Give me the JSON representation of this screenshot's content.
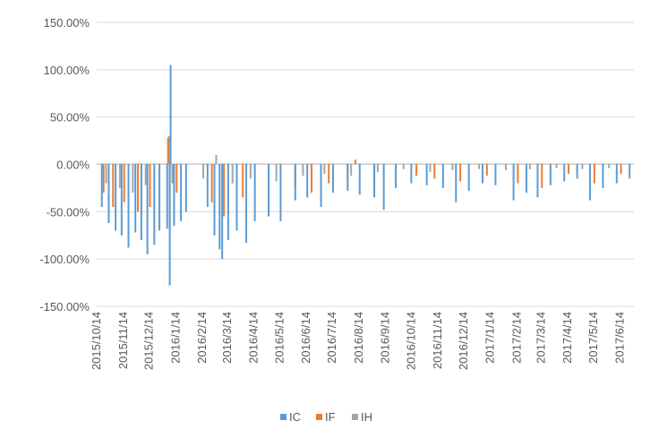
{
  "chart_data": {
    "type": "bar",
    "stacked": false,
    "title": "",
    "xlabel": "",
    "ylabel": "",
    "y_ticks": [
      "150.00%",
      "100.00%",
      "50.00%",
      "0.00%",
      "-50.00%",
      "-100.00%",
      "-150.00%"
    ],
    "ylim": [
      -150,
      150
    ],
    "grid": "horizontal",
    "x_ticks": [
      "2015/10/14",
      "2015/11/14",
      "2015/12/14",
      "2016/1/14",
      "2016/2/14",
      "2016/3/14",
      "2016/4/14",
      "2016/5/14",
      "2016/6/14",
      "2016/7/14",
      "2016/8/14",
      "2016/9/14",
      "2016/10/14",
      "2016/11/14",
      "2016/12/14",
      "2017/1/14",
      "2017/2/14",
      "2017/3/14",
      "2017/4/14",
      "2017/5/14",
      "2017/6/14"
    ],
    "legend": {
      "position": "bottom",
      "entries": [
        "IC",
        "IF",
        "IH"
      ]
    },
    "colors": {
      "IC": "#5b9bd5",
      "IF": "#ed7d31",
      "IH": "#a5a5a5"
    },
    "x_start": "2015/10/14",
    "x_end": "2017/6/30",
    "series": [
      {
        "name": "IC",
        "points": [
          [
            "2015/10/20",
            -45
          ],
          [
            "2015/10/28",
            -62
          ],
          [
            "2015/11/5",
            -70
          ],
          [
            "2015/11/12",
            -75
          ],
          [
            "2015/11/20",
            -88
          ],
          [
            "2015/11/28",
            -72
          ],
          [
            "2015/12/5",
            -80
          ],
          [
            "2015/12/12",
            -95
          ],
          [
            "2015/12/20",
            -85
          ],
          [
            "2015/12/26",
            -70
          ],
          [
            "2016/1/4",
            -68
          ],
          [
            "2016/1/7",
            -128
          ],
          [
            "2016/1/8",
            105
          ],
          [
            "2016/1/12",
            -65
          ],
          [
            "2016/1/20",
            -60
          ],
          [
            "2016/1/26",
            -50
          ],
          [
            "2016/2/20",
            -45
          ],
          [
            "2016/2/28",
            -75
          ],
          [
            "2016/3/5",
            -90
          ],
          [
            "2016/3/8",
            -100
          ],
          [
            "2016/3/15",
            -80
          ],
          [
            "2016/3/25",
            -70
          ],
          [
            "2016/4/5",
            -83
          ],
          [
            "2016/4/15",
            -60
          ],
          [
            "2016/5/1",
            -55
          ],
          [
            "2016/5/15",
            -60
          ],
          [
            "2016/6/1",
            -38
          ],
          [
            "2016/6/15",
            -35
          ],
          [
            "2016/7/1",
            -45
          ],
          [
            "2016/7/15",
            -30
          ],
          [
            "2016/8/1",
            -28
          ],
          [
            "2016/8/15",
            -32
          ],
          [
            "2016/9/1",
            -35
          ],
          [
            "2016/9/12",
            -48
          ],
          [
            "2016/9/26",
            -25
          ],
          [
            "2016/10/14",
            -20
          ],
          [
            "2016/11/1",
            -22
          ],
          [
            "2016/11/20",
            -25
          ],
          [
            "2016/12/5",
            -40
          ],
          [
            "2016/12/20",
            -28
          ],
          [
            "2017/1/5",
            -20
          ],
          [
            "2017/1/20",
            -22
          ],
          [
            "2017/2/10",
            -38
          ],
          [
            "2017/2/25",
            -30
          ],
          [
            "2017/3/10",
            -35
          ],
          [
            "2017/3/25",
            -22
          ],
          [
            "2017/4/10",
            -18
          ],
          [
            "2017/4/25",
            -15
          ],
          [
            "2017/5/10",
            -38
          ],
          [
            "2017/5/25",
            -25
          ],
          [
            "2017/6/10",
            -20
          ],
          [
            "2017/6/25",
            -15
          ]
        ]
      },
      {
        "name": "IF",
        "points": [
          [
            "2015/10/22",
            -30
          ],
          [
            "2015/11/2",
            -45
          ],
          [
            "2015/11/15",
            -40
          ],
          [
            "2015/12/1",
            -50
          ],
          [
            "2015/12/15",
            -45
          ],
          [
            "2016/1/5",
            28
          ],
          [
            "2016/1/7",
            -70
          ],
          [
            "2016/1/15",
            -30
          ],
          [
            "2016/2/25",
            -40
          ],
          [
            "2016/3/10",
            -55
          ],
          [
            "2016/4/1",
            -35
          ],
          [
            "2016/5/1",
            -30
          ],
          [
            "2016/6/1",
            -25
          ],
          [
            "2016/6/20",
            -30
          ],
          [
            "2016/7/10",
            -20
          ],
          [
            "2016/8/1",
            -18
          ],
          [
            "2016/8/10",
            5
          ],
          [
            "2016/9/1",
            -22
          ],
          [
            "2016/10/20",
            -12
          ],
          [
            "2016/11/10",
            -15
          ],
          [
            "2016/12/10",
            -18
          ],
          [
            "2017/1/10",
            -12
          ],
          [
            "2017/2/15",
            -20
          ],
          [
            "2017/3/15",
            -25
          ],
          [
            "2017/4/15",
            -10
          ],
          [
            "2017/5/15",
            -20
          ],
          [
            "2017/6/15",
            -10
          ]
        ]
      },
      {
        "name": "IH",
        "points": [
          [
            "2015/10/25",
            -20
          ],
          [
            "2015/11/10",
            -25
          ],
          [
            "2015/11/25",
            -30
          ],
          [
            "2015/12/10",
            -22
          ],
          [
            "2016/1/6",
            30
          ],
          [
            "2016/1/10",
            -20
          ],
          [
            "2016/2/15",
            -15
          ],
          [
            "2016/3/1",
            10
          ],
          [
            "2016/3/20",
            -20
          ],
          [
            "2016/4/10",
            -15
          ],
          [
            "2016/5/10",
            -18
          ],
          [
            "2016/6/10",
            -12
          ],
          [
            "2016/7/5",
            -10
          ],
          [
            "2016/8/5",
            -12
          ],
          [
            "2016/9/5",
            -8
          ],
          [
            "2016/10/5",
            -5
          ],
          [
            "2016/11/5",
            -8
          ],
          [
            "2016/12/1",
            -6
          ],
          [
            "2017/1/1",
            -5
          ],
          [
            "2017/2/1",
            -6
          ],
          [
            "2017/3/1",
            -5
          ],
          [
            "2017/4/1",
            -4
          ],
          [
            "2017/5/1",
            -5
          ],
          [
            "2017/6/1",
            -4
          ]
        ]
      }
    ]
  }
}
